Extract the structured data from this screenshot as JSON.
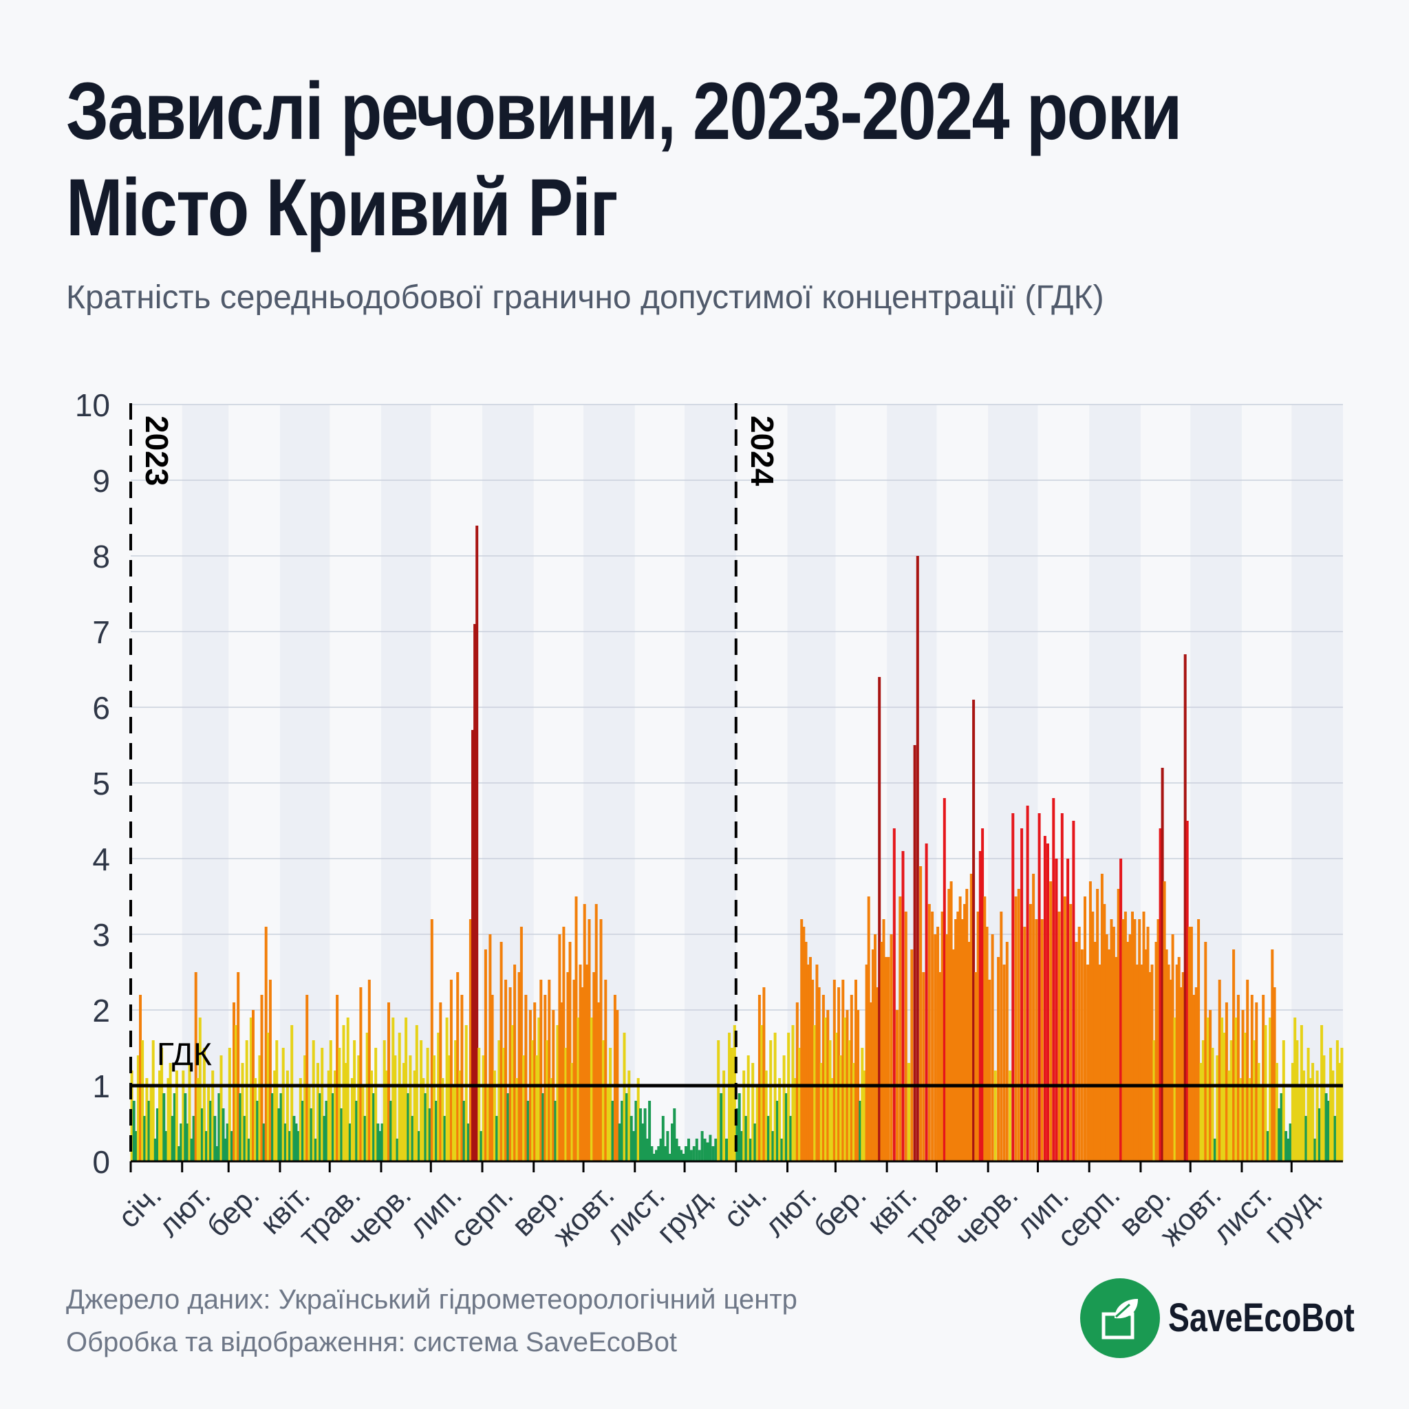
{
  "title_line1": "Завислі речовини, 2023-2024 роки",
  "title_line2": "Місто Кривий Ріг",
  "subtitle": "Кратність середньодобової гранично допустимої концентрації (ГДК)",
  "source_line1": "Джерело даних: Український гідрометеорологічний центр",
  "source_line2": "Обробка та відображення: система SaveEcoBot",
  "logo_text": "SaveEcoBot",
  "colors": {
    "background": "#f7f8fa",
    "band": "#eceff5",
    "grid": "#c9cfdb",
    "green": "#1a9a52",
    "yellow": "#e6d218",
    "orange": "#f27f0a",
    "red": "#e5161b",
    "darkred": "#a81412",
    "limit_line": "#000000"
  },
  "chart_data": {
    "type": "bar",
    "ylim": [
      0,
      10
    ],
    "yticks": [
      0,
      1,
      2,
      3,
      4,
      5,
      6,
      7,
      8,
      9,
      10
    ],
    "limit": {
      "value": 1,
      "label": "ГДК"
    },
    "grid": true,
    "color_thresholds": {
      "green": "<1",
      "yellow": "1–2",
      "orange": "2–4",
      "red": "4–5",
      "darkred": ">5"
    },
    "years": [
      {
        "year": "2023",
        "months": [
          "січ.",
          "лют.",
          "бер.",
          "квіт.",
          "трав.",
          "черв.",
          "лип.",
          "серп.",
          "вер.",
          "жовт.",
          "лист.",
          "груд."
        ],
        "monthly_values": [
          [
            1.2,
            0.8,
            0.4,
            1.4,
            2.2,
            1.6,
            0.6,
            1.1,
            0.8,
            1.0,
            1.6,
            0.3,
            0.7,
            1.2,
            1.5,
            0.9,
            0.4,
            1.1,
            1.3,
            0.6,
            0.9,
            1.2,
            0.2,
            0.5
          ],
          [
            1.2,
            0.9,
            0.5,
            1.3,
            0.3,
            0.6,
            2.5,
            1.1,
            1.9,
            0.7,
            1.5,
            0.4,
            1.0,
            0.8,
            1.2,
            0.6,
            0.2,
            0.9,
            1.4,
            0.7,
            0.3,
            0.5
          ],
          [
            1.5,
            0.4,
            2.1,
            1.8,
            2.5,
            0.9,
            1.3,
            0.6,
            1.6,
            0.3,
            1.9,
            2.0,
            1.1,
            0.8,
            1.4,
            2.2,
            0.5,
            3.1,
            1.7,
            2.4,
            0.9,
            1.2,
            1.6,
            0.7
          ],
          [
            0.9,
            1.5,
            0.5,
            1.2,
            0.4,
            1.8,
            0.6,
            0.5,
            0.4,
            1.1,
            0.8,
            1.4,
            2.2,
            1.0,
            0.7,
            1.6,
            0.3,
            1.3,
            0.9,
            1.5,
            0.6,
            0.8,
            1.2
          ],
          [
            1.6,
            0.9,
            1.2,
            2.2,
            1.5,
            0.7,
            1.8,
            1.3,
            1.9,
            0.5,
            1.1,
            1.6,
            0.8,
            1.4,
            2.3,
            1.0,
            0.6,
            1.7,
            2.4,
            1.2,
            0.9,
            1.5,
            0.5,
            0.4
          ],
          [
            0.5,
            1.6,
            1.2,
            2.1,
            0.8,
            1.9,
            1.4,
            0.3,
            1.7,
            1.0,
            1.3,
            1.9,
            0.9,
            1.4,
            0.6,
            1.2,
            1.8,
            0.4,
            1.6,
            1.1,
            0.9,
            1.5,
            0.7
          ],
          [
            3.2,
            1.4,
            0.8,
            1.7,
            2.1,
            1.1,
            0.6,
            1.9,
            1.4,
            2.4,
            1.0,
            1.6,
            2.5,
            1.2,
            2.2,
            0.8,
            1.8,
            0.5,
            3.2,
            5.7,
            7.1,
            8.4,
            1.5,
            0.4
          ],
          [
            1.4,
            2.8,
            1.0,
            3.0,
            2.2,
            1.2,
            0.6,
            1.6,
            2.9,
            1.5,
            2.4,
            0.9,
            2.3,
            1.8,
            2.6,
            1.1,
            2.5,
            3.1,
            1.4,
            2.2,
            0.8,
            2.0,
            1.6
          ],
          [
            2.1,
            1.4,
            1.9,
            2.4,
            0.9,
            2.2,
            1.6,
            2.4,
            1.1,
            2.0,
            0.8,
            1.8,
            3.0,
            2.1,
            3.1,
            1.5,
            2.5,
            2.9,
            1.3,
            2.4,
            3.5,
            1.9,
            2.6,
            2.3
          ],
          [
            3.4,
            2.6,
            3.2,
            1.9,
            2.5,
            3.4,
            2.1,
            3.2,
            1.6,
            2.4,
            1.0,
            1.5,
            0.8,
            2.2,
            2.0,
            0.5,
            0.8,
            1.7,
            0.9,
            1.2,
            0.6,
            0.4
          ],
          [
            0.8,
            1.1,
            0.7,
            0.5,
            0.7,
            0.3,
            0.8,
            0.2,
            0.1,
            0.15,
            0.2,
            0.3,
            0.6,
            0.2,
            0.4,
            0.1,
            0.5,
            0.7,
            0.3,
            0.2,
            0.15,
            0.1
          ],
          [
            0.2,
            0.3,
            0.15,
            0.2,
            0.3,
            0.15,
            0.4,
            0.3,
            0.25,
            0.35,
            0.2,
            0.3,
            1.6,
            0.9,
            1.2,
            0.3,
            1.7,
            1.5,
            1.8
          ]
        ]
      },
      {
        "year": "2024",
        "months": [
          "січ.",
          "лют.",
          "бер.",
          "квіт.",
          "трав.",
          "черв.",
          "лип.",
          "серп.",
          "вер.",
          "жовт.",
          "лист.",
          "груд."
        ],
        "monthly_values": [
          [
            0.7,
            0.9,
            0.4,
            1.2,
            0.6,
            1.4,
            0.3,
            1.3,
            0.5,
            1.0,
            2.2,
            1.8,
            2.3,
            1.2,
            0.6,
            1.6,
            0.4,
            1.7,
            0.8,
            1.1,
            0.3,
            1.4,
            0.9
          ],
          [
            1.7,
            0.6,
            1.8,
            1.1,
            2.1,
            1.5,
            3.2,
            3.1,
            2.9,
            2.6,
            2.7,
            2.4,
            1.8,
            2.6,
            2.3,
            1.3,
            2.2,
            1.9,
            2.0,
            1.6,
            1.1,
            2.4
          ],
          [
            1.7,
            2.3,
            1.4,
            2.4,
            1.9,
            2.0,
            1.6,
            2.2,
            1.3,
            2.4,
            2.0,
            0.8,
            1.5,
            1.2,
            2.6,
            3.5,
            2.1,
            2.8,
            3.0,
            2.3,
            6.4,
            2.9,
            3.2,
            2.7
          ],
          [
            2.7,
            3.0,
            4.4,
            2.0,
            3.5,
            4.1,
            3.3,
            1.3,
            2.8,
            5.5,
            8.0,
            3.9,
            2.5,
            4.2,
            3.4,
            3.3,
            3.0
          ],
          [
            3.1,
            2.5,
            3.3,
            4.8,
            3.0,
            3.6,
            3.7,
            2.8,
            3.2,
            3.3,
            3.5,
            3.2,
            3.4,
            3.6,
            2.9,
            3.8,
            6.1,
            2.5,
            3.3,
            4.1,
            4.4,
            3.5,
            3.1
          ],
          [
            2.4,
            3.0,
            1.2,
            2.7,
            3.3,
            2.6,
            2.9,
            1.2,
            4.6,
            3.5,
            3.6,
            4.4,
            3.1,
            4.7,
            3.4,
            3.8,
            3.2
          ],
          [
            4.6,
            3.2,
            4.3,
            4.2,
            3.7,
            4.8,
            4.0,
            3.3,
            4.6,
            3.5,
            4.0,
            3.4,
            4.5,
            2.9,
            3.1,
            2.8,
            3.5,
            2.6
          ],
          [
            3.7,
            3.3,
            2.9,
            3.6,
            2.6,
            3.8,
            3.4,
            3.0,
            2.8,
            3.2,
            3.1,
            2.7,
            3.6,
            4.0,
            3.2,
            3.3,
            2.9,
            3.0,
            3.3,
            3.2,
            2.6,
            3.2
          ],
          [
            2.6,
            3.3,
            2.8,
            3.1,
            2.5,
            2.6,
            1.6,
            2.9,
            3.2,
            4.4,
            5.2,
            3.7,
            2.8,
            2.6,
            2.4,
            3.0,
            1.9,
            2.6,
            2.7,
            2.3,
            2.5,
            6.7,
            4.5,
            3.1
          ],
          [
            3.1,
            2.2,
            2.3,
            3.2,
            1.3,
            1.6,
            2.9,
            1.9,
            2.0,
            1.5,
            0.3,
            1.4,
            2.4,
            1.9,
            1.7,
            2.1,
            1.2,
            1.6,
            2.8,
            1.9,
            2.2,
            1.1
          ],
          [
            2.0,
            1.7,
            2.4,
            1.1,
            2.2,
            1.6,
            2.1,
            1.3,
            1.0,
            2.2,
            1.8,
            0.4,
            1.9,
            2.8,
            2.3,
            1.3,
            0.7,
            0.9,
            1.6,
            0.4,
            0.3,
            0.5
          ],
          [
            1.3,
            1.9,
            1.6,
            1.0,
            1.8,
            1.2,
            0.6,
            1.5,
            1.1,
            1.3,
            0.3,
            1.2,
            0.7,
            1.8,
            1.4,
            0.9,
            0.8,
            1.5,
            1.2,
            0.6,
            1.6,
            1.3,
            1.5
          ]
        ]
      }
    ]
  }
}
